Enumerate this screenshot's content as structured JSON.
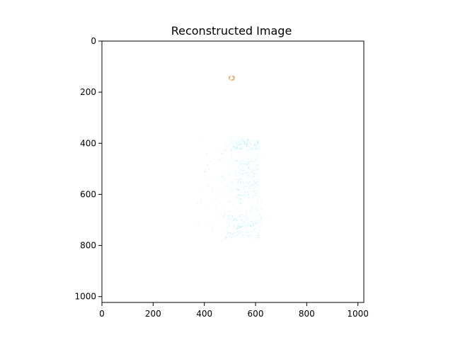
{
  "chart_data": {
    "type": "heatmap",
    "title": "Reconstructed Image",
    "xlabel": "",
    "ylabel": "",
    "xlim": [
      0,
      1023
    ],
    "ylim": [
      1023,
      0
    ],
    "x_ticks": [
      "0",
      "200",
      "400",
      "600",
      "800",
      "1000"
    ],
    "y_ticks": [
      "0",
      "200",
      "400",
      "600",
      "800",
      "1000"
    ],
    "grid": false,
    "legend": "none",
    "colors": {
      "background": "#ffffff",
      "axes": "#000000",
      "dominant_pixel_color": "#66e6f0",
      "accent_pixel_color": "#e3a050"
    },
    "image_description_values": {
      "nonwhite_regions": [
        {
          "x_range": [
            490,
            520
          ],
          "y_range": [
            125,
            160
          ],
          "color": "orange"
        },
        {
          "x_range": [
            370,
            625
          ],
          "y_range": [
            380,
            770
          ],
          "color": "cyan"
        }
      ]
    }
  }
}
